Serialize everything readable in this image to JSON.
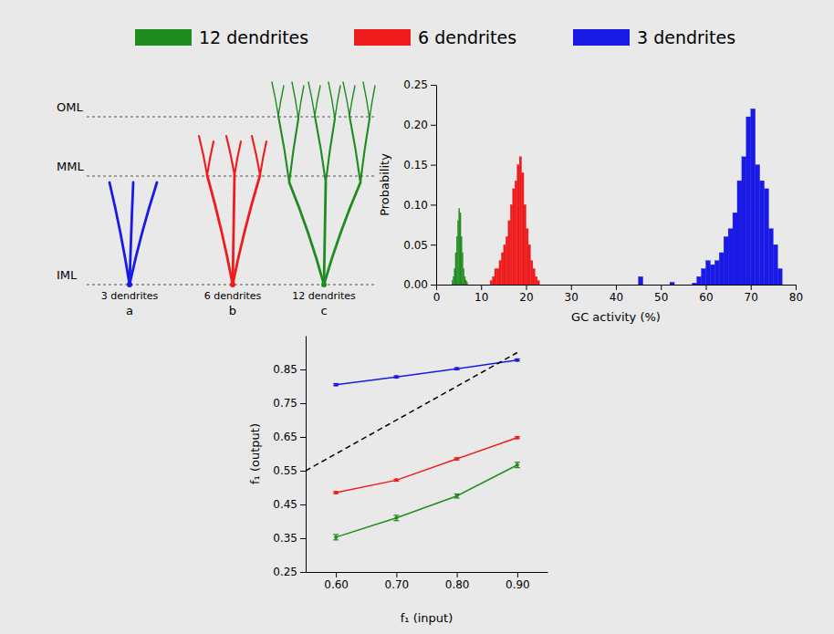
{
  "diagram": {
    "layers": [
      "OML",
      "MML",
      "IML"
    ],
    "cells": [
      {
        "label": "3 dendrites",
        "letter": "a",
        "color": "#1a1ae6"
      },
      {
        "label": "6 dendrites",
        "letter": "b",
        "color": "#ee1c1c"
      },
      {
        "label": "12 dendrites",
        "letter": "c",
        "color": "#1e8c1e"
      }
    ]
  },
  "chart_data": [
    {
      "type": "histogram",
      "legend": "top",
      "grid": false,
      "xlabel": "GC activity (%)",
      "ylabel": "Probability",
      "xlim": [
        0,
        80
      ],
      "xticks": [
        0,
        10,
        20,
        30,
        40,
        50,
        60,
        70,
        80
      ],
      "ylim": [
        0,
        0.25
      ],
      "yticks": [
        {
          "value": 0,
          "label": "0.00"
        },
        {
          "value": 0.05,
          "label": "0.05"
        },
        {
          "value": 0.1,
          "label": "0.10"
        },
        {
          "value": 0.15,
          "label": "0.15"
        },
        {
          "value": 0.2,
          "label": "0.20"
        },
        {
          "value": 0.25,
          "label": "0.25"
        }
      ],
      "series": [
        {
          "name": "12 dendrites",
          "color": "#1e8c1e",
          "bins": [
            3.5,
            3.75,
            4,
            4.25,
            4.5,
            4.75,
            5,
            5.25,
            5.5,
            5.75,
            6,
            6.25,
            6.5,
            6.75,
            7
          ],
          "values": [
            0.005,
            0.01,
            0.02,
            0.04,
            0.06,
            0.08,
            0.095,
            0.09,
            0.06,
            0.04,
            0.02,
            0.01,
            0.005,
            0.003
          ]
        },
        {
          "name": "6 dendrites",
          "color": "#ee1c1c",
          "bins": [
            12,
            12.5,
            13,
            13.5,
            14,
            14.5,
            15,
            15.5,
            16,
            16.5,
            17,
            17.5,
            18,
            18.5,
            19,
            19.5,
            20,
            20.5,
            21,
            21.5,
            22,
            22.5,
            23
          ],
          "values": [
            0.005,
            0.01,
            0.02,
            0.02,
            0.03,
            0.04,
            0.05,
            0.06,
            0.08,
            0.1,
            0.12,
            0.13,
            0.15,
            0.16,
            0.14,
            0.1,
            0.07,
            0.05,
            0.03,
            0.02,
            0.01,
            0.005
          ]
        },
        {
          "name": "3 dendrites",
          "color": "#1a1ae6",
          "bins": [
            45,
            46,
            47,
            48,
            49,
            50,
            51,
            52,
            53,
            54,
            55,
            56,
            57,
            58,
            59,
            60,
            61,
            62,
            63,
            64,
            65,
            66,
            67,
            68,
            69,
            70,
            71,
            72,
            73,
            74,
            75,
            76,
            77
          ],
          "values": [
            0.01,
            0,
            0,
            0,
            0,
            0,
            0,
            0.003,
            0,
            0,
            0,
            0,
            0.002,
            0.01,
            0.02,
            0.03,
            0.025,
            0.03,
            0.04,
            0.06,
            0.07,
            0.09,
            0.13,
            0.16,
            0.21,
            0.22,
            0.15,
            0.13,
            0.12,
            0.07,
            0.05,
            0.02
          ]
        }
      ]
    },
    {
      "type": "line",
      "xlabel": "f₁ (input)",
      "ylabel": "f₁ (output)",
      "xlim": [
        0.55,
        0.95
      ],
      "xticks": [
        {
          "value": 0.6,
          "label": "0.60"
        },
        {
          "value": 0.7,
          "label": "0.70"
        },
        {
          "value": 0.8,
          "label": "0.80"
        },
        {
          "value": 0.9,
          "label": "0.90"
        }
      ],
      "ylim": [
        0.25,
        0.95
      ],
      "yticks": [
        0.25,
        0.35,
        0.45,
        0.55,
        0.65,
        0.75,
        0.85
      ],
      "series": [
        {
          "color": "#1a1ae6",
          "marker": "circle",
          "x": [
            0.6,
            0.7,
            0.8,
            0.9
          ],
          "values": [
            0.805,
            0.828,
            0.852,
            0.878
          ],
          "errors": [
            0.003,
            0.003,
            0.003,
            0.003
          ]
        },
        {
          "color": "#ee1c1c",
          "marker": "circle",
          "x": [
            0.6,
            0.7,
            0.8,
            0.9
          ],
          "values": [
            0.485,
            0.522,
            0.585,
            0.648
          ],
          "errors": [
            0.003,
            0.003,
            0.003,
            0.003
          ]
        },
        {
          "color": "#1e8c1e",
          "marker": "circle",
          "x": [
            0.6,
            0.7,
            0.8,
            0.9
          ],
          "values": [
            0.353,
            0.41,
            0.475,
            0.567
          ],
          "errors": [
            0.008,
            0.008,
            0.006,
            0.008
          ]
        },
        {
          "color": "#000000",
          "line_style": "dashed",
          "x": [
            0.55,
            0.9
          ],
          "values": [
            0.55,
            0.9
          ]
        }
      ]
    }
  ]
}
